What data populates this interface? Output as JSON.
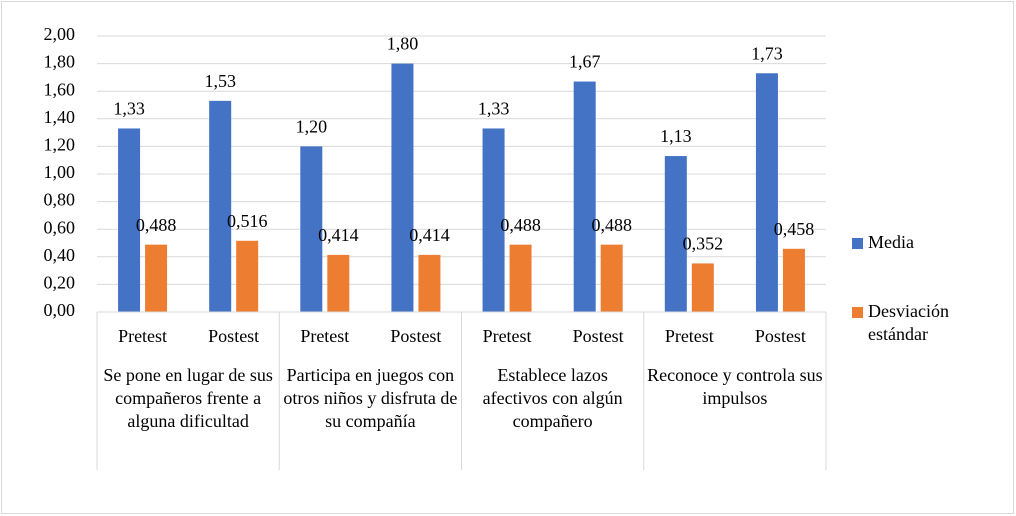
{
  "chart_data": {
    "type": "bar",
    "categories": [
      "Pretest",
      "Postest",
      "Pretest",
      "Postest",
      "Pretest",
      "Postest",
      "Pretest",
      "Postest"
    ],
    "groups": [
      "Se pone en lugar de sus compañeros frente a alguna dificultad",
      "Participa en juegos con otros niños y disfruta de su compañía",
      "Establece lazos afectivos con algún compañero",
      "Reconoce y controla sus impulsos"
    ],
    "series": [
      {
        "name": "Media",
        "color": "#4472c4",
        "values": [
          1.33,
          1.53,
          1.2,
          1.8,
          1.33,
          1.67,
          1.13,
          1.73
        ],
        "value_labels": [
          "1,33",
          "1,53",
          "1,20",
          "1,80",
          "1,33",
          "1,67",
          "1,13",
          "1,73"
        ]
      },
      {
        "name": "Desviación estándar",
        "color": "#ed7d31",
        "values": [
          0.488,
          0.516,
          0.414,
          0.414,
          0.488,
          0.488,
          0.352,
          0.458
        ],
        "value_labels": [
          "0,488",
          "0,516",
          "0,414",
          "0,414",
          "0,488",
          "0,488",
          "0,352",
          "0,458"
        ]
      }
    ],
    "ylim": [
      0,
      2
    ],
    "yticks": [
      {
        "value": 0,
        "label": "0,00"
      },
      {
        "value": 0.2,
        "label": "0,20"
      },
      {
        "value": 0.4,
        "label": "0,40"
      },
      {
        "value": 0.6,
        "label": "0,60"
      },
      {
        "value": 0.8,
        "label": "0,80"
      },
      {
        "value": 1.0,
        "label": "1,00"
      },
      {
        "value": 1.2,
        "label": "1,20"
      },
      {
        "value": 1.4,
        "label": "1,40"
      },
      {
        "value": 1.6,
        "label": "1,60"
      },
      {
        "value": 1.8,
        "label": "1,80"
      },
      {
        "value": 2.0,
        "label": "2,00"
      }
    ],
    "grid": true,
    "legend": "right"
  }
}
